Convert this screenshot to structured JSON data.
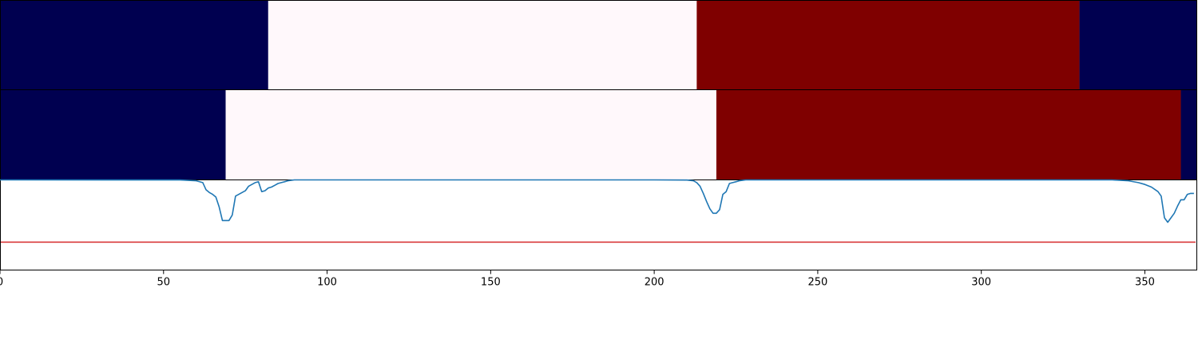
{
  "chart_data": {
    "type": "heatmap",
    "x_range": [
      0,
      366
    ],
    "x_ticks": [
      0,
      50,
      100,
      150,
      200,
      250,
      300,
      350
    ],
    "colors": {
      "low": "#000050",
      "mid": "#fff8fb",
      "high": "#7f0000",
      "line": "#1f77b4",
      "threshold": "#d62728"
    },
    "panels": [
      {
        "type": "heatmap-strip",
        "segments": [
          {
            "start": 0,
            "end": 82,
            "level": "low"
          },
          {
            "start": 82,
            "end": 213,
            "level": "mid"
          },
          {
            "start": 213,
            "end": 330,
            "level": "high"
          },
          {
            "start": 330,
            "end": 366,
            "level": "low"
          }
        ]
      },
      {
        "type": "heatmap-strip",
        "segments": [
          {
            "start": 0,
            "end": 69,
            "level": "low"
          },
          {
            "start": 69,
            "end": 219,
            "level": "mid"
          },
          {
            "start": 219,
            "end": 361,
            "level": "high"
          },
          {
            "start": 361,
            "end": 366,
            "level": "low"
          }
        ]
      },
      {
        "type": "line",
        "ylim": [
          0,
          1
        ],
        "threshold": 0.31,
        "x": [
          0,
          55,
          60,
          62,
          63,
          64,
          65,
          66,
          67,
          68,
          69,
          70,
          71,
          72,
          73,
          74,
          75,
          76,
          77,
          78,
          79,
          80,
          81,
          82,
          83,
          84,
          85,
          86,
          87,
          88,
          90,
          120,
          200,
          210,
          212,
          213,
          214,
          215,
          216,
          217,
          218,
          219,
          220,
          221,
          222,
          223,
          224,
          225,
          226,
          228,
          235,
          300,
          340,
          345,
          348,
          350,
          352,
          354,
          355,
          356,
          357,
          358,
          359,
          360,
          361,
          362,
          363,
          364,
          365
        ],
        "y": [
          1.0,
          0.999,
          0.99,
          0.97,
          0.89,
          0.86,
          0.84,
          0.81,
          0.7,
          0.55,
          0.55,
          0.55,
          0.61,
          0.82,
          0.84,
          0.86,
          0.88,
          0.93,
          0.95,
          0.97,
          0.98,
          0.87,
          0.88,
          0.91,
          0.92,
          0.94,
          0.96,
          0.97,
          0.98,
          0.99,
          1.0,
          1.0,
          1.0,
          0.998,
          0.99,
          0.97,
          0.93,
          0.85,
          0.76,
          0.68,
          0.63,
          0.63,
          0.67,
          0.84,
          0.87,
          0.96,
          0.97,
          0.98,
          0.99,
          1.0,
          1.0,
          1.0,
          1.0,
          0.99,
          0.97,
          0.95,
          0.92,
          0.87,
          0.82,
          0.58,
          0.53,
          0.58,
          0.63,
          0.71,
          0.78,
          0.78,
          0.84,
          0.85,
          0.85
        ]
      }
    ]
  }
}
